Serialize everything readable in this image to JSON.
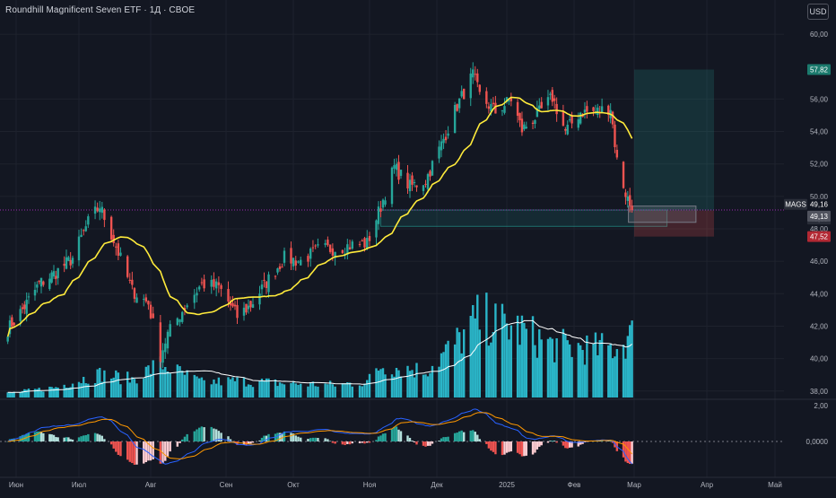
{
  "header": {
    "title": "Roundhill Magnificent Seven ETF · 1Д · CBOE",
    "currency_button": "USD"
  },
  "colors": {
    "background": "#131722",
    "grid": "#1e222d",
    "text": "#b2b5be",
    "up": "#26a69a",
    "down": "#ef5350",
    "ma": "#ffeb3b",
    "volume": "#2ab5c8",
    "volume_ma": "#ffffff",
    "macd_line": "#2962ff",
    "signal_line": "#ff9800",
    "hist_pos": "#26a69a",
    "hist_pos_light": "#b2dfdb",
    "hist_neg": "#ef5350",
    "hist_neg_light": "#ffcdd2",
    "current_price_line": "#9c27b0"
  },
  "chart_data": {
    "type": "candlestick",
    "title": "Roundhill Magnificent Seven ETF · 1Д · CBOE",
    "symbol": "MAGS",
    "price_axis": {
      "ticks": [
        "38,00",
        "40,00",
        "42,00",
        "44,00",
        "46,00",
        "48,00",
        "50,00",
        "52,00",
        "54,00",
        "56,00",
        "60,00"
      ],
      "range": [
        37.6,
        61.0
      ]
    },
    "time_axis": {
      "labels": [
        "Июн",
        "Июл",
        "Авг",
        "Сен",
        "Окт",
        "Ноя",
        "Дек",
        "2025",
        "Фев",
        "Мар",
        "Апр",
        "Май"
      ]
    },
    "price_labels": [
      {
        "text": "57,82",
        "role": "target"
      },
      {
        "text": "MAGS",
        "role": "symbol"
      },
      {
        "text": "49,16",
        "role": "last"
      },
      {
        "text": "49,13",
        "role": "entry"
      },
      {
        "text": "48,00",
        "role": "entry_hidden"
      },
      {
        "text": "47,52",
        "role": "stop"
      }
    ],
    "position_tool": {
      "target": 57.82,
      "entry": 49.13,
      "stop": 47.52,
      "zone_top": 49.16,
      "zone_bottom": 48.15
    },
    "last_price": 49.16,
    "anchors": [
      [
        "2024-05-28",
        41.8
      ],
      [
        "2024-06-05",
        43.2
      ],
      [
        "2024-06-12",
        44.6
      ],
      [
        "2024-06-20",
        45.3
      ],
      [
        "2024-06-28",
        46.2
      ],
      [
        "2024-07-05",
        48.4
      ],
      [
        "2024-07-10",
        49.4
      ],
      [
        "2024-07-16",
        47.3
      ],
      [
        "2024-07-24",
        44.2
      ],
      [
        "2024-07-31",
        43.4
      ],
      [
        "2024-08-05",
        40.2
      ],
      [
        "2024-08-08",
        41.5
      ],
      [
        "2024-08-15",
        43.2
      ],
      [
        "2024-08-22",
        44.6
      ],
      [
        "2024-08-29",
        44.4
      ],
      [
        "2024-09-06",
        42.6
      ],
      [
        "2024-09-12",
        43.3
      ],
      [
        "2024-09-20",
        44.9
      ],
      [
        "2024-09-27",
        46.2
      ],
      [
        "2024-10-04",
        46.0
      ],
      [
        "2024-10-11",
        46.7
      ],
      [
        "2024-10-18",
        46.8
      ],
      [
        "2024-10-25",
        47.0
      ],
      [
        "2024-10-31",
        47.1
      ],
      [
        "2024-11-06",
        49.4
      ],
      [
        "2024-11-12",
        51.8
      ],
      [
        "2024-11-19",
        50.6
      ],
      [
        "2024-11-26",
        51.0
      ],
      [
        "2024-12-03",
        53.2
      ],
      [
        "2024-12-10",
        55.6
      ],
      [
        "2024-12-17",
        57.5
      ],
      [
        "2024-12-20",
        56.2
      ],
      [
        "2024-12-27",
        55.2
      ],
      [
        "2025-01-03",
        56.0
      ],
      [
        "2025-01-08",
        54.1
      ],
      [
        "2025-01-15",
        55.0
      ],
      [
        "2025-01-22",
        56.1
      ],
      [
        "2025-01-28",
        54.0
      ],
      [
        "2025-02-04",
        55.2
      ],
      [
        "2025-02-11",
        55.2
      ],
      [
        "2025-02-18",
        55.5
      ],
      [
        "2025-02-21",
        52.2
      ],
      [
        "2025-02-25",
        50.2
      ],
      [
        "2025-02-28",
        49.16
      ]
    ],
    "volume_anchors": [
      [
        "2024-05-28",
        0.05
      ],
      [
        "2024-06-20",
        0.12
      ],
      [
        "2024-07-10",
        0.28
      ],
      [
        "2024-07-24",
        0.22
      ],
      [
        "2024-08-05",
        0.4
      ],
      [
        "2024-08-22",
        0.18
      ],
      [
        "2024-09-06",
        0.2
      ],
      [
        "2024-09-27",
        0.17
      ],
      [
        "2024-10-18",
        0.15
      ],
      [
        "2024-10-31",
        0.19
      ],
      [
        "2024-11-06",
        0.38
      ],
      [
        "2024-11-26",
        0.32
      ],
      [
        "2024-12-10",
        0.66
      ],
      [
        "2024-12-20",
        0.95
      ],
      [
        "2025-01-08",
        0.8
      ],
      [
        "2025-01-22",
        0.62
      ],
      [
        "2025-02-11",
        0.58
      ],
      [
        "2025-02-21",
        0.6
      ],
      [
        "2025-02-28",
        0.74
      ]
    ],
    "oscillator": {
      "zero_label": "0,0000",
      "top_label": "2,00"
    }
  }
}
